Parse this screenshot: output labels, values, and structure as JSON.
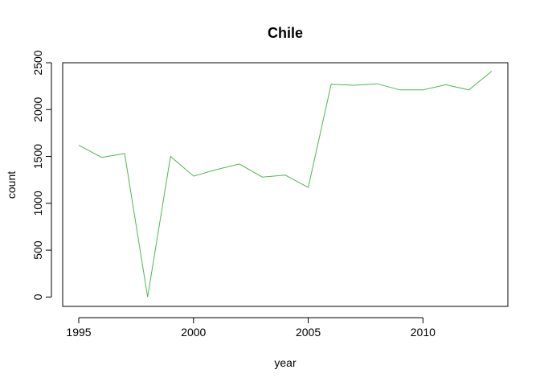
{
  "chart_data": {
    "type": "line",
    "title": "Chile",
    "xlabel": "year",
    "ylabel": "count",
    "xlim": [
      1994.3,
      2013.7
    ],
    "ylim": [
      -100,
      2500
    ],
    "x_ticks": [
      1995,
      2000,
      2005,
      2010
    ],
    "y_ticks": [
      0,
      500,
      1000,
      1500,
      2000,
      2500
    ],
    "grid": false,
    "line_color": "#4DB84D",
    "x": [
      1995,
      1996,
      1997,
      1998,
      1999,
      2000,
      2001,
      2002,
      2003,
      2004,
      2005,
      2006,
      2007,
      2008,
      2009,
      2010,
      2011,
      2012,
      2013
    ],
    "y": [
      1620,
      1490,
      1530,
      0,
      1500,
      1290,
      1360,
      1420,
      1280,
      1300,
      1170,
      2270,
      2260,
      2275,
      2210,
      2210,
      2265,
      2210,
      2410
    ]
  }
}
